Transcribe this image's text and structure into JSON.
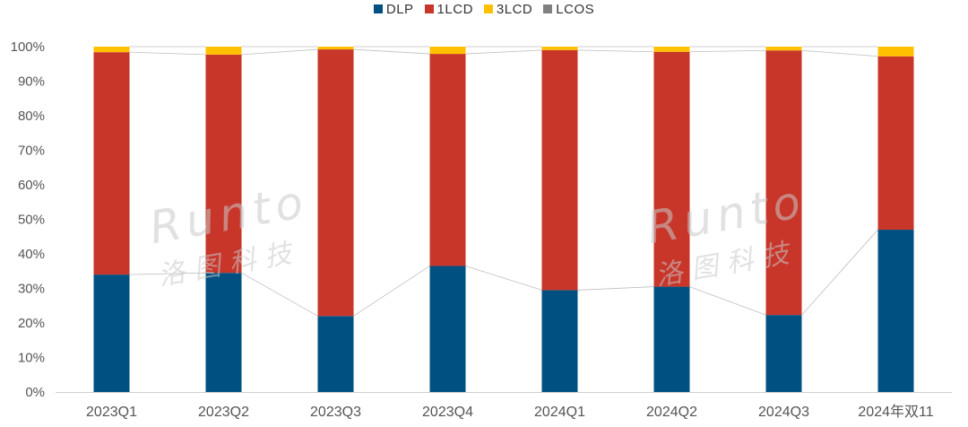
{
  "chart_data": {
    "type": "bar",
    "stacked": true,
    "categories": [
      "2023Q1",
      "2023Q2",
      "2023Q3",
      "2023Q4",
      "2024Q1",
      "2024Q2",
      "2024Q3",
      "2024年双11"
    ],
    "series": [
      {
        "name": "DLP",
        "color": "#005082",
        "values": [
          34.0,
          34.5,
          22.0,
          36.5,
          29.5,
          30.5,
          22.3,
          47.0
        ]
      },
      {
        "name": "1LCD",
        "color": "#C8362A",
        "values": [
          64.4,
          63.2,
          77.2,
          61.4,
          69.5,
          68.0,
          76.6,
          50.2
        ]
      },
      {
        "name": "3LCD",
        "color": "#FFC000",
        "values": [
          1.6,
          2.3,
          0.8,
          2.1,
          1.0,
          1.5,
          1.1,
          2.8
        ]
      },
      {
        "name": "LCOS",
        "color": "#808080",
        "values": [
          0,
          0,
          0,
          0,
          0,
          0,
          0,
          0
        ]
      }
    ],
    "yticks": [
      "0%",
      "10%",
      "20%",
      "30%",
      "40%",
      "50%",
      "60%",
      "70%",
      "80%",
      "90%",
      "100%"
    ],
    "ylim": [
      0,
      100
    ],
    "legend_position": "top"
  },
  "watermark": {
    "text": "Runto",
    "subtext": "洛图科技"
  }
}
